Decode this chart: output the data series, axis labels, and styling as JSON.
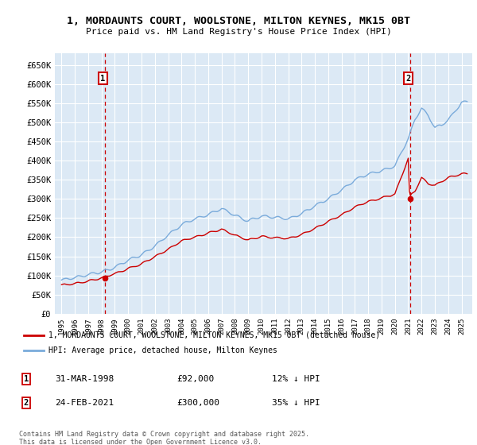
{
  "title_line1": "1, MORDAUNTS COURT, WOOLSTONE, MILTON KEYNES, MK15 0BT",
  "title_line2": "Price paid vs. HM Land Registry's House Price Index (HPI)",
  "background_color": "#dce9f5",
  "grid_color": "#ffffff",
  "legend_label_red": "1, MORDAUNTS COURT, WOOLSTONE, MILTON KEYNES, MK15 0BT (detached house)",
  "legend_label_blue": "HPI: Average price, detached house, Milton Keynes",
  "footnote": "Contains HM Land Registry data © Crown copyright and database right 2025.\nThis data is licensed under the Open Government Licence v3.0.",
  "sale1_date": "31-MAR-1998",
  "sale1_price": "£92,000",
  "sale1_hpi": "12% ↓ HPI",
  "sale2_date": "24-FEB-2021",
  "sale2_price": "£300,000",
  "sale2_hpi": "35% ↓ HPI",
  "red_color": "#cc0000",
  "blue_color": "#7aabdb",
  "marker1_x_year": 1998.25,
  "marker2_x_year": 2021.15,
  "marker1_y": 92000,
  "marker2_y": 300000,
  "ylim_min": 0,
  "ylim_max": 680000,
  "yticks": [
    0,
    50000,
    100000,
    150000,
    200000,
    250000,
    300000,
    350000,
    400000,
    450000,
    500000,
    550000,
    600000,
    650000
  ],
  "xlim_min": 1994.5,
  "xlim_max": 2025.8
}
